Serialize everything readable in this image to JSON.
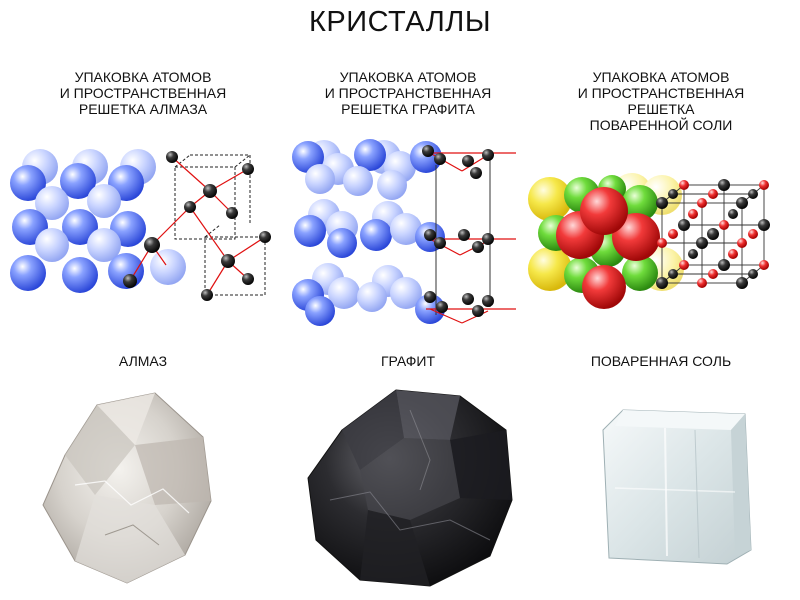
{
  "title": "КРИСТАЛЛЫ",
  "columns": [
    {
      "caption": "УПАКОВКА АТОМОВ\nИ ПРОСТРАНСТВЕННАЯ\nРЕШЕТКА АЛМАЗА",
      "label": "АЛМАЗ"
    },
    {
      "caption": "УПАКОВКА АТОМОВ\nИ ПРОСТРАНСТВЕННАЯ\nРЕШЕТКА ГРАФИТА",
      "label": "ГРАФИТ"
    },
    {
      "caption": "УПАКОВКА АТОМОВ\nИ ПРОСТРАНСТВЕННАЯ\nРЕШЕТКА\nПОВАРЕННОЙ СОЛИ",
      "label": "ПОВАРЕННАЯ СОЛЬ"
    }
  ],
  "colors": {
    "atom_blue": "#4a6cf0",
    "atom_carbon": "#222222",
    "bond_red": "#e01010",
    "sodium_green": "#46c21e",
    "chlorine_red": "#e81c1c",
    "yellow_atom": "#f3e23a",
    "graphite": "#2b2b2e",
    "diamond": "#d8d6d2",
    "salt": "#e4ebec"
  }
}
